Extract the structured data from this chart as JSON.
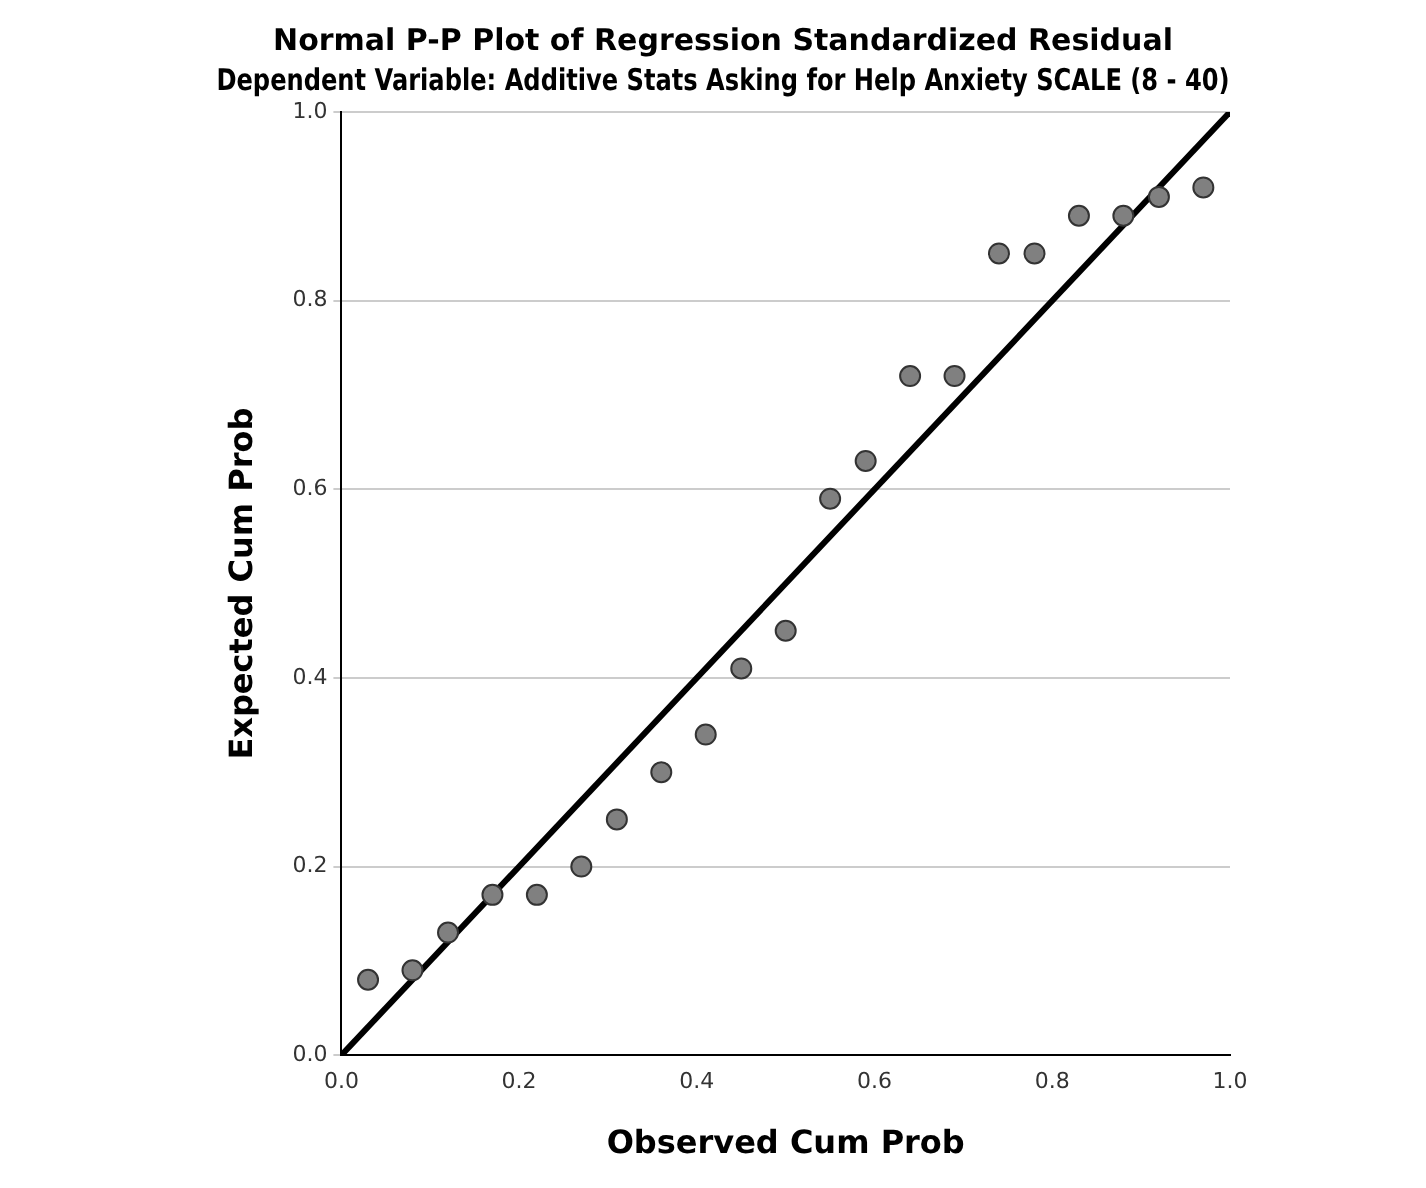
{
  "chart_data": {
    "type": "scatter",
    "title": "Normal P-P Plot of Regression Standardized Residual",
    "subtitle": "Dependent Variable: Additive Stats Asking for Help Anxiety SCALE (8 - 40)",
    "xlabel": "Observed Cum Prob",
    "ylabel": "Expected Cum Prob",
    "xlim": [
      0,
      1
    ],
    "ylim": [
      0,
      1
    ],
    "xticks": [
      {
        "value": 0,
        "label": "0.0"
      },
      {
        "value": 0.2,
        "label": "0.2"
      },
      {
        "value": 0.4,
        "label": "0.4"
      },
      {
        "value": 0.6,
        "label": "0.6"
      },
      {
        "value": 0.8,
        "label": "0.8"
      },
      {
        "value": 1,
        "label": "1.0"
      }
    ],
    "yticks": [
      {
        "value": 0,
        "label": "0.0"
      },
      {
        "value": 0.2,
        "label": "0.2"
      },
      {
        "value": 0.4,
        "label": "0.4"
      },
      {
        "value": 0.6,
        "label": "0.6"
      },
      {
        "value": 0.8,
        "label": "0.8"
      },
      {
        "value": 1,
        "label": "1.0"
      }
    ],
    "grid": "y",
    "series": [
      {
        "type": "scatter",
        "marker": "circle",
        "color": "#808080",
        "x": [
          0.03,
          0.08,
          0.12,
          0.17,
          0.22,
          0.27,
          0.31,
          0.36,
          0.41,
          0.45,
          0.5,
          0.55,
          0.59,
          0.64,
          0.69,
          0.74,
          0.78,
          0.83,
          0.88,
          0.92,
          0.97
        ],
        "values": [
          0.08,
          0.09,
          0.13,
          0.17,
          0.17,
          0.2,
          0.25,
          0.3,
          0.34,
          0.41,
          0.45,
          0.59,
          0.63,
          0.72,
          0.72,
          0.85,
          0.85,
          0.89,
          0.89,
          0.91,
          0.92
        ]
      },
      {
        "type": "line",
        "color": "#000000",
        "x": [
          0,
          1
        ],
        "values": [
          0,
          1
        ],
        "line_style": "solid"
      }
    ]
  }
}
